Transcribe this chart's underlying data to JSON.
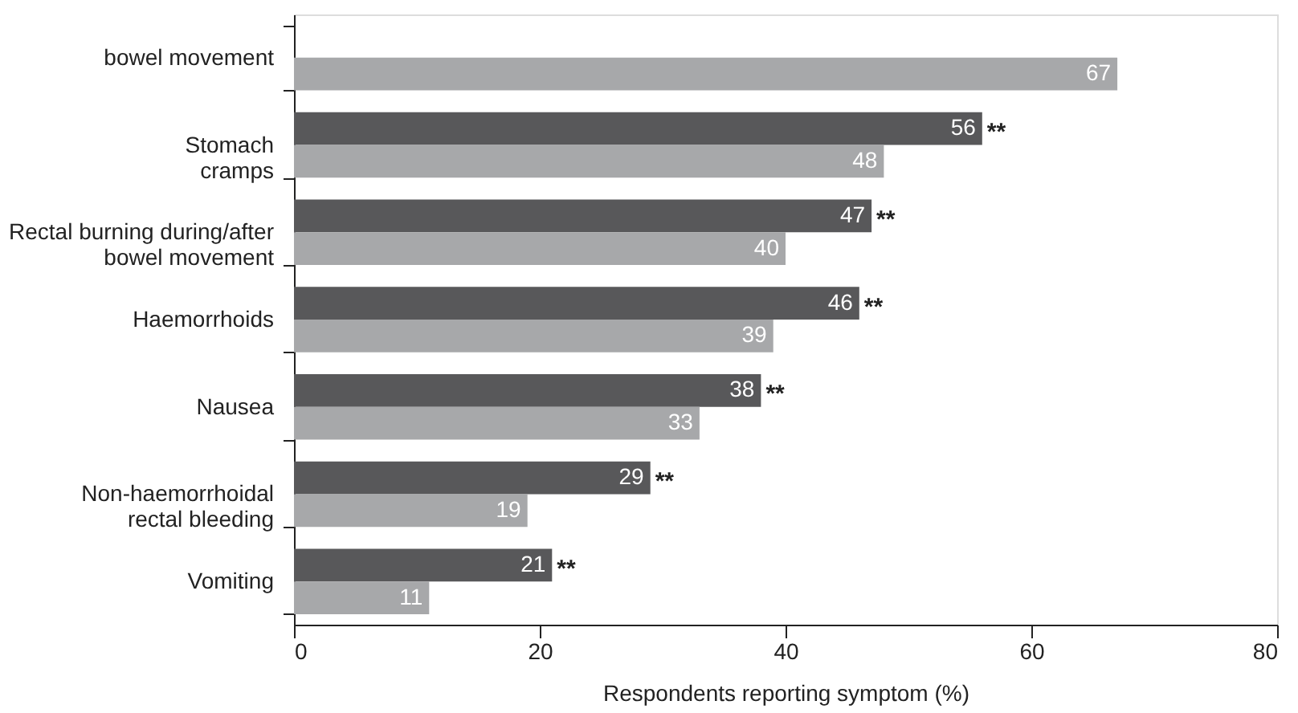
{
  "chart_data": {
    "type": "bar",
    "orientation": "horizontal",
    "xlabel": "Respondents reporting symptom (%)",
    "categories": [
      "bowel movement",
      "Stomach\ncramps",
      "Rectal burning during/after\nbowel movement",
      "Haemorrhoids",
      "Nausea",
      "Non-haemorrhoidal\nrectal bleeding",
      "Vomiting"
    ],
    "series": [
      {
        "color": "#58585a",
        "values": [
          null,
          56,
          47,
          46,
          38,
          29,
          21
        ]
      },
      {
        "color": "#a7a8aa",
        "values": [
          67,
          48,
          40,
          39,
          33,
          19,
          11
        ]
      }
    ],
    "data_labels": true,
    "xlim": [
      0,
      80
    ],
    "xticks": [
      0,
      20,
      40,
      60,
      80
    ],
    "grid": false,
    "legend": false,
    "annotations": [
      {
        "text": "**",
        "x": 56,
        "y": "Stomach\ncramps"
      },
      {
        "text": "**",
        "x": 47,
        "y": "Rectal burning during/after\nbowel movement"
      },
      {
        "text": "**",
        "x": 46,
        "y": "Haemorrhoids"
      },
      {
        "text": "**",
        "x": 38,
        "y": "Nausea"
      },
      {
        "text": "**",
        "x": 29,
        "y": "Non-haemorrhoidal\nrectal bleeding"
      },
      {
        "text": "**",
        "x": 21,
        "y": "Vomiting"
      }
    ]
  }
}
